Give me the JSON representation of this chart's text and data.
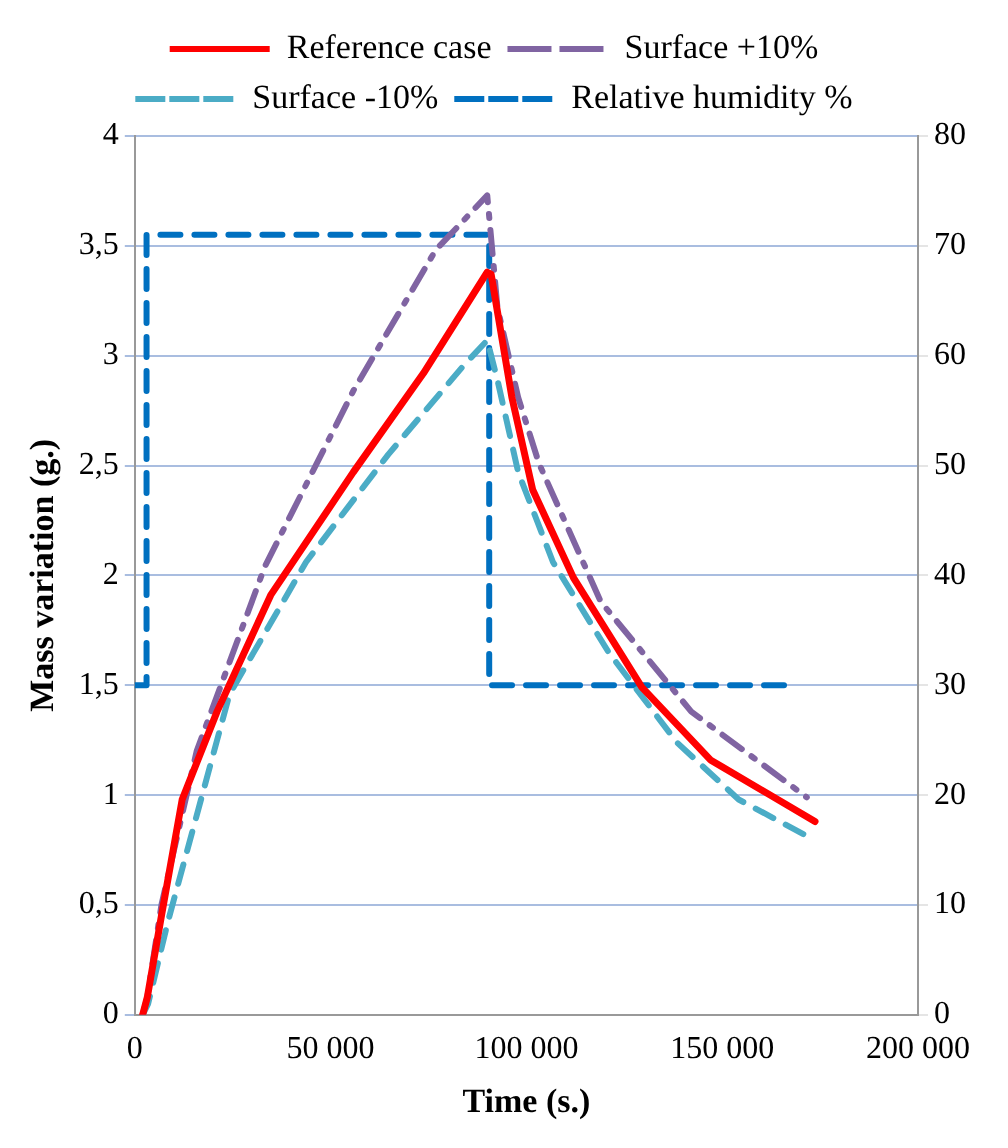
{
  "chart_data": {
    "type": "line",
    "xlabel": "Time (s.)",
    "ylabel": "Mass variation (g.)",
    "xlim": [
      0,
      200000
    ],
    "xticks": [
      0,
      {
        "value": 50000,
        "label": "50 000"
      },
      {
        "value": 100000,
        "label": "100 000"
      },
      {
        "value": 150000,
        "label": "150 000"
      },
      {
        "value": 200000,
        "label": "200 000"
      }
    ],
    "ylim": [
      0,
      4
    ],
    "yticks": [
      0,
      {
        "value": 0.5,
        "label": "0,5"
      },
      1,
      {
        "value": 1.5,
        "label": "1,5"
      },
      2,
      {
        "value": 2.5,
        "label": "2,5"
      },
      3,
      {
        "value": 3.5,
        "label": "3,5"
      },
      4
    ],
    "y2lim": [
      0,
      80
    ],
    "y2ticks": [
      0,
      10,
      20,
      30,
      40,
      50,
      60,
      70,
      80
    ],
    "grid": "y",
    "legend": "top",
    "marker": "none",
    "series": [
      {
        "name": "Reference case",
        "color": "#ff0000",
        "line_style": "solid",
        "x": [
          2000,
          3200,
          6800,
          12100,
          21000,
          34700,
          55800,
          73700,
          90000,
          91000,
          96300,
          101600,
          112000,
          129500,
          147000,
          173700
        ],
        "values": [
          0,
          0.08,
          0.45,
          0.98,
          1.38,
          1.91,
          2.47,
          2.92,
          3.38,
          3.37,
          2.81,
          2.39,
          1.99,
          1.49,
          1.16,
          0.88
        ]
      },
      {
        "name": "Surface +10%",
        "color": "#8064a2",
        "line_style": "dashed",
        "x": [
          2000,
          3200,
          6800,
          15800,
          33200,
          55800,
          76800,
          90000,
          92600,
          97900,
          103200,
          119000,
          142100,
          171600
        ],
        "values": [
          0,
          0.08,
          0.5,
          1.2,
          2.04,
          2.84,
          3.48,
          3.73,
          3.22,
          2.81,
          2.51,
          1.88,
          1.38,
          0.99
        ]
      },
      {
        "name": "Surface -10%",
        "color": "#4bacc6",
        "line_style": "dashed",
        "x": [
          2000,
          3400,
          8400,
          24200,
          43700,
          64700,
          84200,
          90000,
          92600,
          97900,
          106800,
          121000,
          138400,
          154200,
          171000
        ],
        "values": [
          0,
          0.05,
          0.42,
          1.46,
          2.06,
          2.55,
          2.96,
          3.07,
          2.89,
          2.47,
          2.06,
          1.65,
          1.24,
          0.98,
          0.82
        ]
      },
      {
        "name": "Relative humidity %",
        "color": "#0070c0",
        "line_style": "dashed",
        "axis": "y2",
        "x": [
          0,
          3000,
          3000,
          90500,
          90500,
          168000
        ],
        "values": [
          30,
          30,
          71,
          71,
          30,
          30
        ]
      }
    ]
  }
}
